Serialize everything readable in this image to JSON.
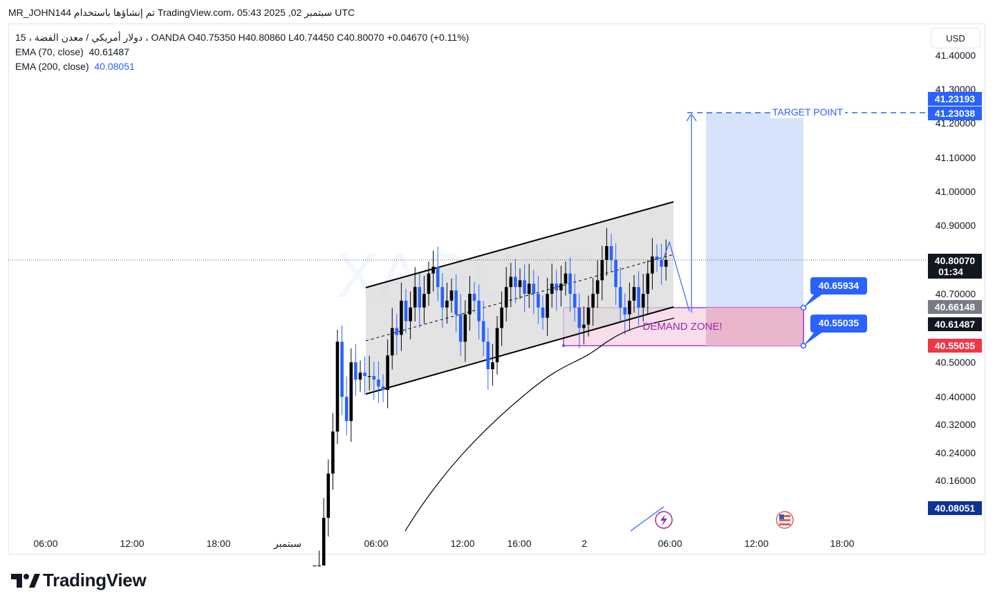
{
  "header": {
    "snapshot_line": "MR_JOHN144 تم إنشاؤها باستخدام TradingView.com، 05:43 2025 ,02 سبتمبر UTC"
  },
  "legend": {
    "symbol_line": "15 ، دولار أمريكي / معدن الفضة ، OANDA  O40.75350  H40.80860  L40.74450  C40.80070  +0.04670 (+0.11%)",
    "ema70_label": "EMA (70, close)",
    "ema70_value": "40.61487",
    "ema200_label": "EMA (200, close)",
    "ema200_value": "40.08051"
  },
  "currency_button": "USD",
  "watermark": "XAGUSD",
  "brand": "TradingView",
  "colors": {
    "bull": "#2962ff",
    "bear": "#000000",
    "demand_fill": "#e9b6cc",
    "target_fill": "#d6e3fb",
    "channel_fill": "#d9d9d9",
    "price_neg": "#f23645",
    "accent": "#2962ff"
  },
  "chart_data": {
    "type": "candlestick",
    "symbol": "XAGUSD",
    "interval": "15",
    "y_scale": "log",
    "y_ticks": [
      "41.40000",
      "41.30000",
      "41.20000",
      "41.10000",
      "41.00000",
      "40.90000",
      "40.70000",
      "40.50000",
      "40.40000",
      "40.32000",
      "40.24000",
      "40.16000"
    ],
    "x_ticks": [
      "06:00",
      "12:00",
      "18:00",
      "سبتمبر",
      "06:00",
      "12:00",
      "16:00",
      "2",
      "06:00",
      "12:00",
      "18:00"
    ],
    "price_badges": [
      {
        "text": "41.23193",
        "kind": "blue"
      },
      {
        "text": "41.23038",
        "kind": "blue"
      },
      {
        "text": "40.80070",
        "sub": "01:34",
        "kind": "last"
      },
      {
        "text": "40.66148",
        "kind": "gray"
      },
      {
        "text": "40.61487",
        "kind": "black"
      },
      {
        "text": "40.55035",
        "kind": "red"
      },
      {
        "text": "40.08051",
        "kind": "navy"
      }
    ],
    "annotations": {
      "target_label": "TARGET POINT",
      "target_price": 41.23038,
      "demand_label": "DEMAND ZONE!",
      "demand_top": 40.65934,
      "demand_bottom": 40.55035,
      "demand_top_label": "40.65934",
      "demand_bottom_label": "40.55035"
    },
    "last_price": 40.8007,
    "ohlc": {
      "open": 40.7535,
      "high": 40.8086,
      "low": 40.7445,
      "close": 40.8007,
      "change": "+0.04670",
      "change_pct": "+0.11%"
    },
    "ema70_last": 40.61487,
    "ema200_last": 40.08051,
    "closes": [
      39.78,
      39.9,
      40.05,
      40.18,
      40.3,
      40.56,
      40.4,
      40.33,
      40.5,
      40.45,
      40.47,
      40.46,
      40.46,
      40.45,
      40.43,
      40.42,
      40.52,
      40.6,
      40.58,
      40.68,
      40.62,
      40.66,
      40.72,
      40.66,
      40.7,
      40.76,
      40.78,
      40.72,
      40.66,
      40.68,
      40.71,
      40.64,
      40.56,
      40.64,
      40.7,
      40.68,
      40.62,
      40.56,
      40.48,
      40.5,
      40.6,
      40.66,
      40.72,
      40.75,
      40.72,
      40.74,
      40.7,
      40.73,
      40.7,
      40.66,
      40.63,
      40.7,
      40.73,
      40.71,
      40.73,
      40.76,
      40.7,
      40.66,
      40.6,
      40.61,
      40.66,
      40.7,
      40.74,
      40.8,
      40.84,
      40.8,
      40.72,
      40.66,
      40.64,
      40.68,
      40.72,
      40.66,
      40.7,
      40.76,
      40.81,
      40.8,
      40.78,
      40.8
    ]
  }
}
